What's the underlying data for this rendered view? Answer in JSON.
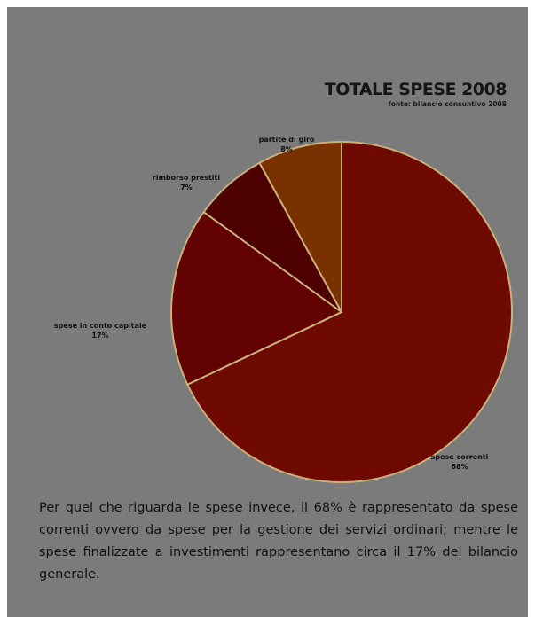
{
  "chart_data": {
    "type": "pie",
    "title": "TOTALE SPESE 2008",
    "subtitle": "fonte: bilancio consuntivo 2008",
    "slices": [
      {
        "label": "spese correnti",
        "value_label": "68%",
        "value": 68,
        "color": "#6e0a02"
      },
      {
        "label": "spese in conto capitale",
        "value_label": "17%",
        "value": 17,
        "color": "#620202"
      },
      {
        "label": "rimborso prestiti",
        "value_label": "7%",
        "value": 7,
        "color": "#4e0101"
      },
      {
        "label": "partite di giro",
        "value_label": "8%",
        "value": 8,
        "color": "#7a3102"
      }
    ],
    "slice_order": "clockwise from top"
  },
  "caption": "Per quel che riguarda le spese invece, il 68% è rappresentato da spese correnti ovvero da spese per la gestione dei servizi ordinari; mentre le spese finalizzate a investimenti rappresentano circa il 17% del bilancio generale."
}
